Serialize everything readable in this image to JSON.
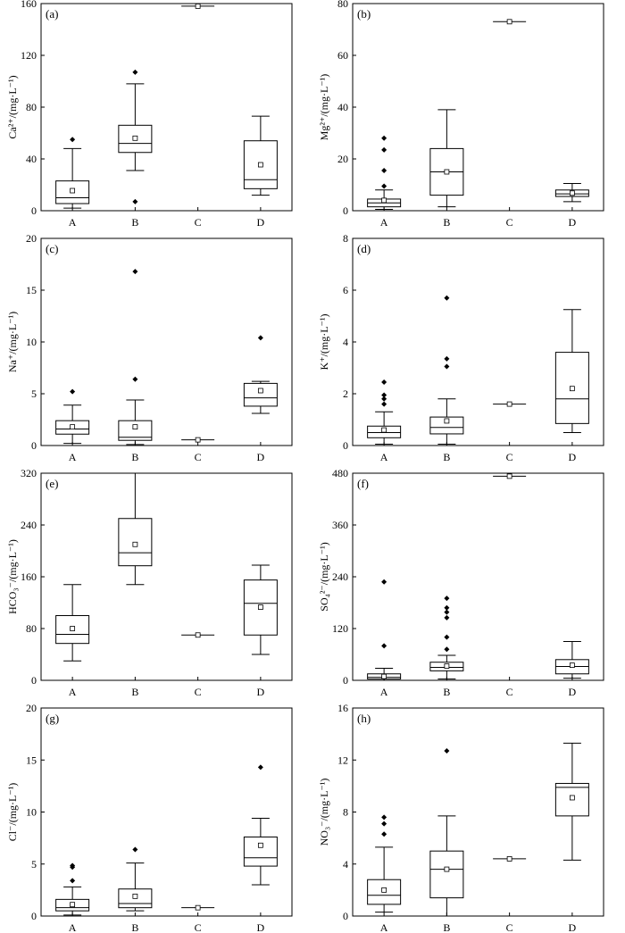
{
  "chart_data": [
    {
      "type": "box",
      "panel_label": "(a)",
      "ylabel": "Ca²⁺/(mg·L⁻¹)",
      "ylim": [
        0,
        160
      ],
      "yticks": [
        0,
        40,
        80,
        120,
        160
      ],
      "categories": [
        "A",
        "B",
        "C",
        "D"
      ],
      "boxes": [
        {
          "category": "A",
          "whisker_low": 2,
          "q1": 5.5,
          "median": 10,
          "q3": 23,
          "whisker_high": 48,
          "mean": 15.5,
          "outliers": [
            55
          ]
        },
        {
          "category": "B",
          "whisker_low": 31,
          "q1": 45,
          "median": 52,
          "q3": 66,
          "whisker_high": 98,
          "mean": 56,
          "outliers": [
            107,
            7
          ]
        },
        {
          "category": "C",
          "whisker_low": 158,
          "q1": 158,
          "median": 158,
          "q3": 158,
          "whisker_high": 158,
          "mean": 158,
          "outliers": []
        },
        {
          "category": "D",
          "whisker_low": 12,
          "q1": 17,
          "median": 24,
          "q3": 54,
          "whisker_high": 73,
          "mean": 35.5,
          "outliers": []
        }
      ]
    },
    {
      "type": "box",
      "panel_label": "(b)",
      "ylabel": "Mg²⁺/(mg·L⁻¹)",
      "ylim": [
        0,
        80
      ],
      "yticks": [
        0,
        20,
        40,
        60,
        80
      ],
      "categories": [
        "A",
        "B",
        "C",
        "D"
      ],
      "boxes": [
        {
          "category": "A",
          "whisker_low": 0.5,
          "q1": 1.5,
          "median": 3,
          "q3": 4.5,
          "whisker_high": 8,
          "mean": 4,
          "outliers": [
            9.5,
            15.5,
            23.5,
            28
          ]
        },
        {
          "category": "B",
          "whisker_low": 1.5,
          "q1": 6,
          "median": 15,
          "q3": 24,
          "whisker_high": 39,
          "mean": 15,
          "outliers": []
        },
        {
          "category": "C",
          "whisker_low": 73,
          "q1": 73,
          "median": 73,
          "q3": 73,
          "whisker_high": 73,
          "mean": 73,
          "outliers": []
        },
        {
          "category": "D",
          "whisker_low": 3.5,
          "q1": 5.5,
          "median": 6.5,
          "q3": 8,
          "whisker_high": 10.5,
          "mean": 6.8,
          "outliers": []
        }
      ]
    },
    {
      "type": "box",
      "panel_label": "(c)",
      "ylabel": "Na⁺/(mg·L⁻¹)",
      "ylim": [
        0,
        20
      ],
      "yticks": [
        0,
        5,
        10,
        15,
        20
      ],
      "categories": [
        "A",
        "B",
        "C",
        "D"
      ],
      "boxes": [
        {
          "category": "A",
          "whisker_low": 0.2,
          "q1": 1.1,
          "median": 1.6,
          "q3": 2.4,
          "whisker_high": 3.9,
          "mean": 1.8,
          "outliers": [
            5.2
          ]
        },
        {
          "category": "B",
          "whisker_low": 0.1,
          "q1": 0.5,
          "median": 0.8,
          "q3": 2.4,
          "whisker_high": 4.4,
          "mean": 1.8,
          "outliers": [
            6.4,
            16.8
          ]
        },
        {
          "category": "C",
          "whisker_low": 0.55,
          "q1": 0.55,
          "median": 0.55,
          "q3": 0.55,
          "whisker_high": 0.55,
          "mean": 0.55,
          "outliers": []
        },
        {
          "category": "D",
          "whisker_low": 3.1,
          "q1": 3.8,
          "median": 4.6,
          "q3": 6,
          "whisker_high": 6.2,
          "mean": 5.3,
          "outliers": [
            10.4
          ]
        }
      ]
    },
    {
      "type": "box",
      "panel_label": "(d)",
      "ylabel": "K⁺/(mg·L⁻¹)",
      "ylim": [
        0,
        8
      ],
      "yticks": [
        0,
        2,
        4,
        6,
        8
      ],
      "categories": [
        "A",
        "B",
        "C",
        "D"
      ],
      "boxes": [
        {
          "category": "A",
          "whisker_low": 0.05,
          "q1": 0.3,
          "median": 0.5,
          "q3": 0.75,
          "whisker_high": 1.3,
          "mean": 0.6,
          "outliers": [
            1.6,
            1.8,
            1.95,
            2.45
          ]
        },
        {
          "category": "B",
          "whisker_low": 0.05,
          "q1": 0.45,
          "median": 0.7,
          "q3": 1.1,
          "whisker_high": 1.8,
          "mean": 0.95,
          "outliers": [
            3.05,
            3.35,
            5.7
          ]
        },
        {
          "category": "C",
          "whisker_low": 1.6,
          "q1": 1.6,
          "median": 1.6,
          "q3": 1.6,
          "whisker_high": 1.6,
          "mean": 1.6,
          "outliers": []
        },
        {
          "category": "D",
          "whisker_low": 0.5,
          "q1": 0.85,
          "median": 1.8,
          "q3": 3.6,
          "whisker_high": 5.25,
          "mean": 2.2,
          "outliers": []
        }
      ]
    },
    {
      "type": "box",
      "panel_label": "(e)",
      "ylabel": "HCO₃⁻/(mg·L⁻¹)",
      "ylim": [
        0,
        320
      ],
      "yticks": [
        0,
        80,
        160,
        240,
        320
      ],
      "categories": [
        "A",
        "B",
        "C",
        "D"
      ],
      "boxes": [
        {
          "category": "A",
          "whisker_low": 30,
          "q1": 57,
          "median": 71,
          "q3": 100,
          "whisker_high": 148,
          "mean": 80,
          "outliers": []
        },
        {
          "category": "B",
          "whisker_low": 148,
          "q1": 177,
          "median": 197,
          "q3": 250,
          "whisker_high": 320,
          "mean": 210,
          "outliers": []
        },
        {
          "category": "C",
          "whisker_low": 70,
          "q1": 70,
          "median": 70,
          "q3": 70,
          "whisker_high": 70,
          "mean": 70,
          "outliers": []
        },
        {
          "category": "D",
          "whisker_low": 40,
          "q1": 70,
          "median": 119,
          "q3": 155,
          "whisker_high": 178,
          "mean": 113,
          "outliers": []
        }
      ]
    },
    {
      "type": "box",
      "panel_label": "(f)",
      "ylabel": "SO₄²⁻/(mg·L⁻¹)",
      "ylim": [
        0,
        480
      ],
      "yticks": [
        0,
        120,
        240,
        360,
        480
      ],
      "categories": [
        "A",
        "B",
        "C",
        "D"
      ],
      "boxes": [
        {
          "category": "A",
          "whisker_low": 0,
          "q1": 3,
          "median": 7,
          "q3": 15,
          "whisker_high": 28,
          "mean": 9,
          "outliers": [
            80,
            228
          ]
        },
        {
          "category": "B",
          "whisker_low": 3,
          "q1": 22,
          "median": 30,
          "q3": 42,
          "whisker_high": 58,
          "mean": 33,
          "outliers": [
            72,
            100,
            145,
            158,
            168,
            190
          ]
        },
        {
          "category": "C",
          "whisker_low": 473,
          "q1": 473,
          "median": 473,
          "q3": 473,
          "whisker_high": 473,
          "mean": 473,
          "outliers": []
        },
        {
          "category": "D",
          "whisker_low": 5,
          "q1": 15,
          "median": 32,
          "q3": 48,
          "whisker_high": 90,
          "mean": 35,
          "outliers": []
        }
      ]
    },
    {
      "type": "box",
      "panel_label": "(g)",
      "ylabel": "Cl⁻/(mg·L⁻¹)",
      "ylim": [
        0,
        20
      ],
      "yticks": [
        0,
        5,
        10,
        15,
        20
      ],
      "categories": [
        "A",
        "B",
        "C",
        "D"
      ],
      "boxes": [
        {
          "category": "A",
          "whisker_low": 0.1,
          "q1": 0.5,
          "median": 0.8,
          "q3": 1.6,
          "whisker_high": 2.8,
          "mean": 1.1,
          "outliers": [
            3.4,
            4.7,
            4.85
          ]
        },
        {
          "category": "B",
          "whisker_low": 0.5,
          "q1": 0.8,
          "median": 1.2,
          "q3": 2.6,
          "whisker_high": 5.1,
          "mean": 1.9,
          "outliers": [
            6.4
          ]
        },
        {
          "category": "C",
          "whisker_low": 0.8,
          "q1": 0.8,
          "median": 0.8,
          "q3": 0.8,
          "whisker_high": 0.8,
          "mean": 0.8,
          "outliers": []
        },
        {
          "category": "D",
          "whisker_low": 3,
          "q1": 4.8,
          "median": 5.6,
          "q3": 7.6,
          "whisker_high": 9.4,
          "mean": 6.8,
          "outliers": [
            14.3
          ]
        }
      ]
    },
    {
      "type": "box",
      "panel_label": "(h)",
      "ylabel": "NO₃⁻/(mg·L⁻¹)",
      "ylim": [
        0,
        16
      ],
      "yticks": [
        0,
        4,
        8,
        12,
        16
      ],
      "categories": [
        "A",
        "B",
        "C",
        "D"
      ],
      "boxes": [
        {
          "category": "A",
          "whisker_low": 0.3,
          "q1": 0.9,
          "median": 1.6,
          "q3": 2.8,
          "whisker_high": 5.3,
          "mean": 2,
          "outliers": [
            6.3,
            7.1,
            7.6
          ]
        },
        {
          "category": "B",
          "whisker_low": 0,
          "q1": 1.4,
          "median": 3.6,
          "q3": 5,
          "whisker_high": 7.7,
          "mean": 3.6,
          "outliers": [
            12.7
          ]
        },
        {
          "category": "C",
          "whisker_low": 4.4,
          "q1": 4.4,
          "median": 4.4,
          "q3": 4.4,
          "whisker_high": 4.4,
          "mean": 4.4,
          "outliers": []
        },
        {
          "category": "D",
          "whisker_low": 4.3,
          "q1": 7.7,
          "median": 9.9,
          "q3": 10.2,
          "whisker_high": 13.3,
          "mean": 9.1,
          "outliers": []
        }
      ]
    }
  ]
}
